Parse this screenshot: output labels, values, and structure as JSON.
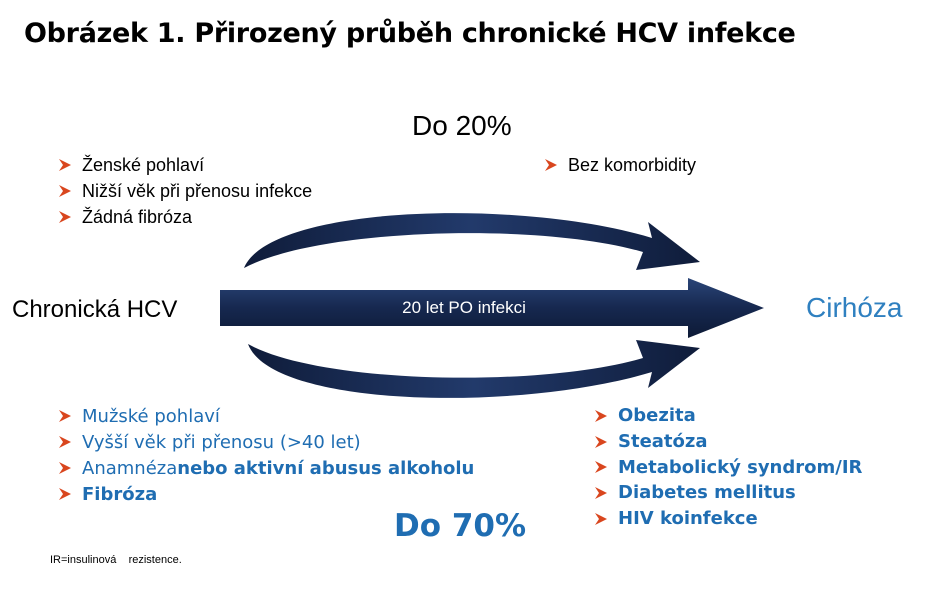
{
  "title": "Obrázek 1. Přirozený průběh chronické HCV infekce",
  "top_percent": "Do 20%",
  "bottom_percent": "Do 70%",
  "start_label": "Chronická HCV",
  "end_label": "Cirhóza",
  "arrow_label": "20 let PO infekci",
  "source_note": "IR=insulinová    rezistence.",
  "top_left_factors": [
    "Ženské pohlaví",
    "Nižší věk při přenosu infekce",
    "Žádná fibróza"
  ],
  "top_right_factors": [
    "Bez komorbidity"
  ],
  "bottom_left_factors": [
    {
      "normal": "Mužské pohlaví",
      "bold": ""
    },
    {
      "normal": "Vyšší věk při přenosu (>40 let)",
      "bold": ""
    },
    {
      "normal": "Anamnéza ",
      "bold": "nebo aktivní abusus alkoholu"
    },
    {
      "normal": "",
      "bold": "Fibróza"
    }
  ],
  "bottom_right_factors": [
    "Obezita",
    "Steatóza",
    "Metabolický syndrom/IR",
    "Diabetes mellitus",
    "HIV koinfekce"
  ],
  "colors": {
    "navy": "#16284f",
    "blue_text": "#1f6db2",
    "cirrhosis_blue": "#2f80c0",
    "bullet_red": "#d9461e"
  }
}
